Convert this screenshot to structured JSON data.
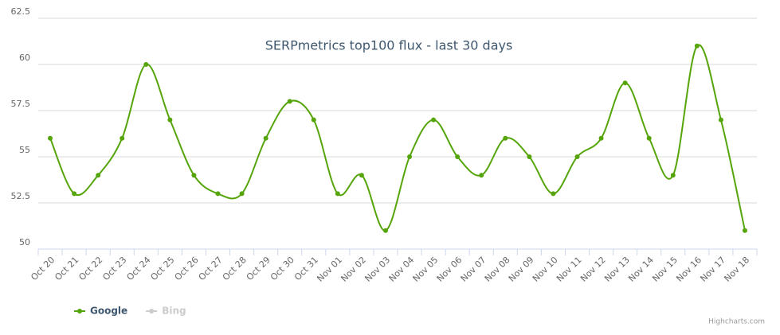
{
  "chart_data": {
    "type": "line",
    "smooth": true,
    "title": "SERPmetrics top100 flux - last 30 days",
    "categories": [
      "Oct 20",
      "Oct 21",
      "Oct 22",
      "Oct 23",
      "Oct 24",
      "Oct 25",
      "Oct 26",
      "Oct 27",
      "Oct 28",
      "Oct 29",
      "Oct 30",
      "Oct 31",
      "Nov 01",
      "Nov 02",
      "Nov 03",
      "Nov 04",
      "Nov 05",
      "Nov 06",
      "Nov 07",
      "Nov 08",
      "Nov 09",
      "Nov 10",
      "Nov 11",
      "Nov 12",
      "Nov 13",
      "Nov 14",
      "Nov 15",
      "Nov 16",
      "Nov 17",
      "Nov 18"
    ],
    "series": [
      {
        "name": "Google",
        "color": "#55a50a",
        "visible": true,
        "values": [
          56,
          53,
          54,
          56,
          60,
          57,
          54,
          53,
          53,
          56,
          58,
          57,
          53,
          54,
          51,
          55,
          57,
          55,
          54,
          56,
          55,
          53,
          55,
          56,
          59,
          56,
          54,
          61,
          57,
          51
        ]
      },
      {
        "name": "Bing",
        "color": "#cccccc",
        "visible": false
      }
    ],
    "ylim": [
      50,
      62.5
    ],
    "yticks": [
      50,
      52.5,
      55,
      57.5,
      60,
      62.5
    ],
    "grid": true,
    "legend": "bottom-left",
    "credits": "Highcharts.com"
  }
}
